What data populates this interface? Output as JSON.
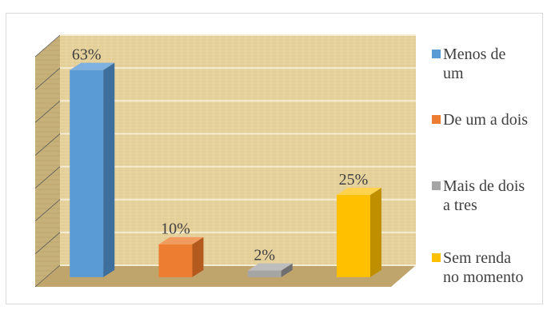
{
  "chart_data": {
    "type": "bar",
    "categories": [
      "Menos de um",
      "De um a dois",
      "Mais de dois a tres",
      "Sem renda no momento"
    ],
    "values": [
      63,
      10,
      2,
      25
    ],
    "data_labels": [
      "63%",
      "10%",
      "2%",
      "25%"
    ],
    "ylim": [
      0,
      70
    ],
    "grid": true,
    "legend_placement": "right",
    "colors": [
      "#5b9bd5",
      "#ed7d31",
      "#a5a5a5",
      "#ffc000"
    ],
    "side_colors": [
      "#3d6e9c",
      "#b45a1f",
      "#6f6f6f",
      "#bf8f00"
    ],
    "top_colors": [
      "#7fb1e0",
      "#f29b5e",
      "#bdbdbd",
      "#ffd24d"
    ]
  },
  "legend": {
    "items": [
      {
        "line1": "Menos de",
        "line2": "um"
      },
      {
        "line1": "De um a dois",
        "line2": ""
      },
      {
        "line1": "Mais de dois",
        "line2": "a tres"
      },
      {
        "line1": "Sem renda",
        "line2": "no momento"
      }
    ]
  },
  "background": {
    "wall": "#e8d6a3",
    "floor": "#b8a06a",
    "side_wall": "#c9b47e",
    "grid": "#f3ead0"
  }
}
